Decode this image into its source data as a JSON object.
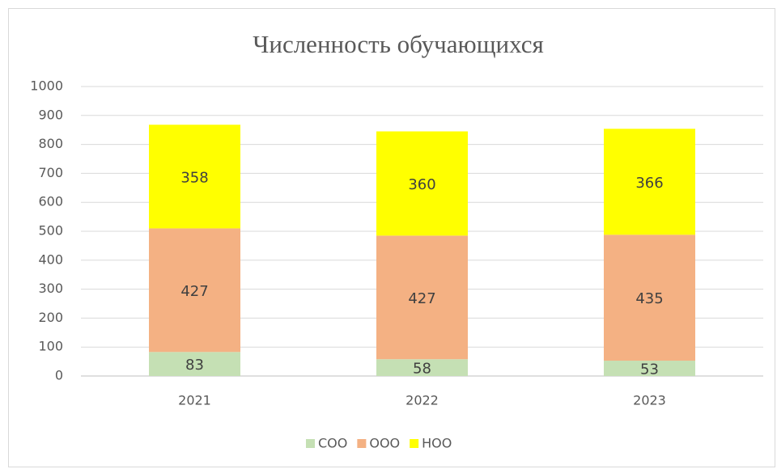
{
  "chart_data": {
    "type": "stacked_bar",
    "title": "Численность обучающихся",
    "categories": [
      "2021",
      "2022",
      "2023"
    ],
    "series": [
      {
        "name": "СОО",
        "color": "#c5e0b4",
        "values": [
          83,
          58,
          53
        ]
      },
      {
        "name": "ООО",
        "color": "#f4b183",
        "values": [
          427,
          427,
          435
        ]
      },
      {
        "name": "НОО",
        "color": "#ffff00",
        "values": [
          358,
          360,
          366
        ]
      }
    ],
    "ylim": [
      0,
      1000
    ],
    "yticks": [
      0,
      100,
      200,
      300,
      400,
      500,
      600,
      700,
      800,
      900,
      1000
    ],
    "grid": true,
    "legend": "bottom"
  }
}
